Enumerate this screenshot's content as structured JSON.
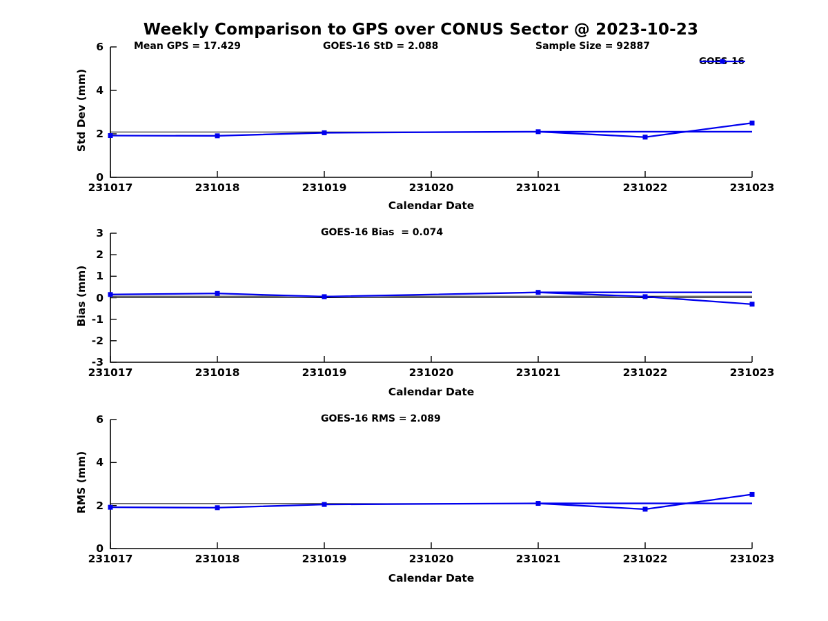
{
  "figure": {
    "title": "Weekly Comparison to GPS over CONUS Sector @ 2023-10-23",
    "background": "#ffffff"
  },
  "legend": {
    "label": "GOES-16",
    "color": "#0000EE",
    "marker": "square"
  },
  "chart_data": [
    {
      "type": "line",
      "panel": "std-dev",
      "ylabel": "Std Dev (mm)",
      "xlabel": "Calendar Date",
      "annotations": [
        "Mean GPS = 17.429",
        "GOES-16 StD = 2.088",
        "Sample Size = 92887"
      ],
      "xlim": [
        231017,
        231023
      ],
      "ylim": [
        0,
        6
      ],
      "yticks": [
        0,
        2,
        4,
        6
      ],
      "x_ticks": [
        231017,
        231018,
        231019,
        231020,
        231021,
        231022,
        231023
      ],
      "x_ticklabels": [
        "231017",
        "231018",
        "231019",
        "231020",
        "231021",
        "231022",
        "231023"
      ],
      "grid": false,
      "series": [
        {
          "name": "weekly-std-reference",
          "color": "#000000",
          "line_width": 1,
          "marker": "none",
          "x": [
            231017,
            231023
          ],
          "y": [
            2.088,
            2.088
          ]
        },
        {
          "name": "GOES-16-daily",
          "color": "#0000EE",
          "line_width": 2.3,
          "marker": "square",
          "x": [
            231017,
            231018,
            231019,
            231021,
            231022,
            231023
          ],
          "y": [
            1.92,
            1.91,
            2.05,
            2.1,
            1.85,
            2.5
          ]
        },
        {
          "name": "GOES-16-flat-segment",
          "color": "#0000EE",
          "line_width": 2.3,
          "marker": "none",
          "x": [
            231021,
            231023
          ],
          "y": [
            2.1,
            2.1
          ]
        }
      ]
    },
    {
      "type": "line",
      "panel": "bias",
      "ylabel": "Bias (mm)",
      "xlabel": "Calendar Date",
      "annotations": [
        "GOES-16 Bias  = 0.074"
      ],
      "xlim": [
        231017,
        231023
      ],
      "ylim": [
        -3,
        3
      ],
      "yticks": [
        3,
        2,
        1,
        0,
        -1,
        -2,
        -3
      ],
      "x_ticks": [
        231017,
        231018,
        231019,
        231020,
        231021,
        231022,
        231023
      ],
      "x_ticklabels": [
        "231017",
        "231018",
        "231019",
        "231020",
        "231021",
        "231022",
        "231023"
      ],
      "grid": false,
      "series": [
        {
          "name": "zero-reference",
          "color": "#000000",
          "line_width": 1,
          "marker": "none",
          "x": [
            231017,
            231023
          ],
          "y": [
            0,
            0
          ]
        },
        {
          "name": "weekly-bias-reference",
          "color": "#000000",
          "line_width": 1,
          "marker": "none",
          "x": [
            231017,
            231023
          ],
          "y": [
            0.074,
            0.074
          ]
        },
        {
          "name": "GOES-16-daily",
          "color": "#0000EE",
          "line_width": 2.3,
          "marker": "square",
          "x": [
            231017,
            231018,
            231019,
            231021,
            231022,
            231023
          ],
          "y": [
            0.15,
            0.2,
            0.05,
            0.25,
            0.05,
            -0.3
          ]
        },
        {
          "name": "GOES-16-flat-segment",
          "color": "#0000EE",
          "line_width": 2.3,
          "marker": "none",
          "x": [
            231021,
            231023
          ],
          "y": [
            0.25,
            0.25
          ]
        }
      ]
    },
    {
      "type": "line",
      "panel": "rms",
      "ylabel": "RMS (mm)",
      "xlabel": "Calendar Date",
      "annotations": [
        "GOES-16 RMS = 2.089"
      ],
      "xlim": [
        231017,
        231023
      ],
      "ylim": [
        0,
        6
      ],
      "yticks": [
        0,
        2,
        4,
        6
      ],
      "x_ticks": [
        231017,
        231018,
        231019,
        231020,
        231021,
        231022,
        231023
      ],
      "x_ticklabels": [
        "231017",
        "231018",
        "231019",
        "231020",
        "231021",
        "231022",
        "231023"
      ],
      "grid": false,
      "series": [
        {
          "name": "weekly-rms-reference",
          "color": "#000000",
          "line_width": 1,
          "marker": "none",
          "x": [
            231017,
            231023
          ],
          "y": [
            2.089,
            2.089
          ]
        },
        {
          "name": "GOES-16-daily",
          "color": "#0000EE",
          "line_width": 2.3,
          "marker": "square",
          "x": [
            231017,
            231018,
            231019,
            231021,
            231022,
            231023
          ],
          "y": [
            1.92,
            1.9,
            2.05,
            2.1,
            1.83,
            2.52
          ]
        },
        {
          "name": "GOES-16-flat-segment",
          "color": "#0000EE",
          "line_width": 2.3,
          "marker": "none",
          "x": [
            231021,
            231023
          ],
          "y": [
            2.1,
            2.1
          ]
        }
      ]
    }
  ]
}
